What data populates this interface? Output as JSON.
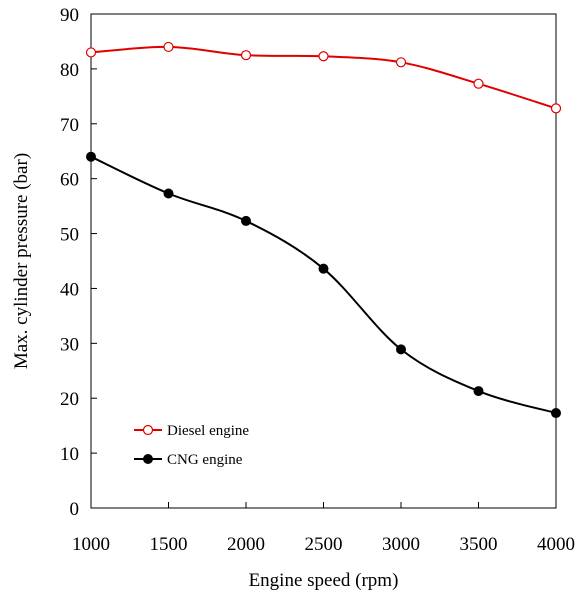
{
  "chart_data": {
    "type": "line",
    "title": "",
    "xlabel": "Engine speed (rpm)",
    "ylabel": "Max. cylinder pressure (bar)",
    "xlim": [
      1000,
      4000
    ],
    "ylim": [
      0,
      90
    ],
    "x_ticks": [
      1000,
      1500,
      2000,
      2500,
      3000,
      3500,
      4000
    ],
    "y_ticks": [
      0,
      10,
      20,
      30,
      40,
      50,
      60,
      70,
      80,
      90
    ],
    "grid": false,
    "legend_position": "lower-left",
    "x": [
      1000,
      1500,
      2000,
      2500,
      3000,
      3500,
      4000
    ],
    "series": [
      {
        "name": "Diesel engine",
        "values": [
          83.0,
          84.0,
          82.5,
          82.3,
          81.2,
          77.3,
          72.8
        ],
        "color": "#e00000",
        "marker": "open-circle"
      },
      {
        "name": "CNG engine",
        "values": [
          64.0,
          57.3,
          52.3,
          43.6,
          28.9,
          21.3,
          17.3
        ],
        "color": "#000000",
        "marker": "filled-circle"
      }
    ]
  }
}
